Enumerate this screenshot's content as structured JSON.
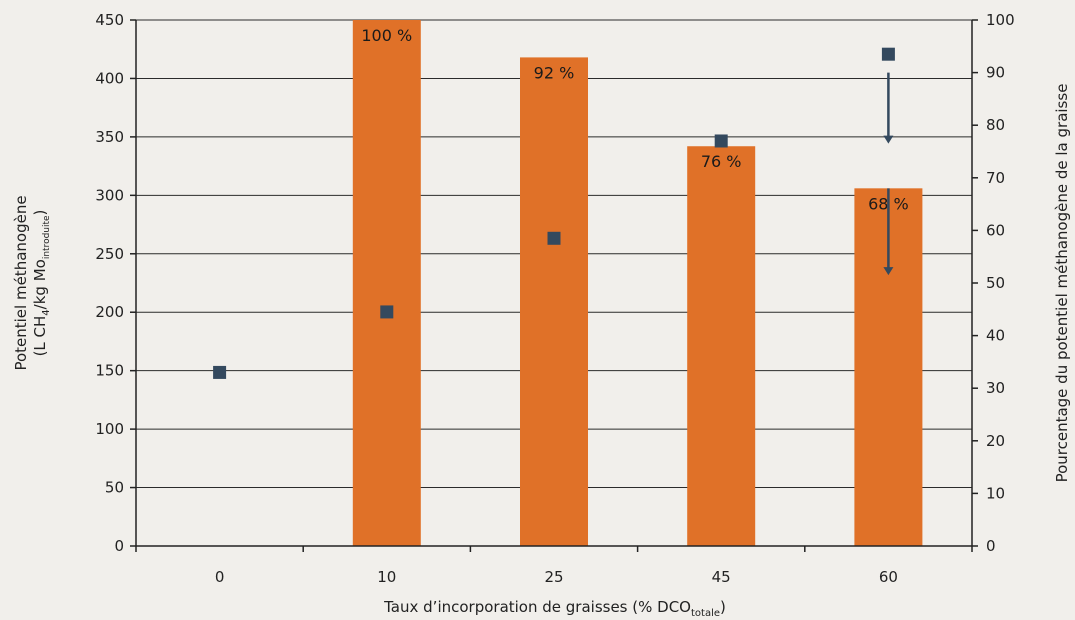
{
  "chart_data": {
    "type": "bar",
    "categories": [
      "0",
      "10",
      "25",
      "45",
      "60"
    ],
    "series": [
      {
        "type": "bar",
        "axis": "left",
        "values": [
          0,
          450,
          418,
          342,
          306
        ],
        "labels": [
          "",
          "100 %",
          "92 %",
          "76 %",
          "68 %"
        ],
        "color": "#e07128"
      },
      {
        "type": "scatter",
        "axis": "right",
        "values": [
          33,
          44.5,
          58.5,
          77,
          93.5
        ],
        "color": "#34495e"
      }
    ],
    "arrows": [
      {
        "category": "60",
        "from": 90,
        "to": 76.5
      },
      {
        "category": "60",
        "from": 68,
        "to": 51.5
      }
    ],
    "xlabel": "Taux d’incorporation de graisses (% DCO",
    "xlabel_sub": "totale",
    "xlabel_end": ")",
    "ylabel_line1": "Potentiel méthanogène",
    "ylabel_line2_a": "(L CH",
    "ylabel_line2_sub1": "4",
    "ylabel_line2_b": "/kg Mo",
    "ylabel_line2_sub2": "introduite",
    "ylabel_line2_c": ")",
    "y2label": "Pourcentage du potentiel méthanogène de la graisse",
    "ylim": [
      0,
      450
    ],
    "y2lim": [
      0,
      100
    ],
    "yticks": [
      0,
      50,
      100,
      150,
      200,
      250,
      300,
      350,
      400,
      450
    ],
    "y2ticks": [
      0,
      10,
      20,
      30,
      40,
      50,
      60,
      70,
      80,
      90,
      100
    ],
    "grid": true,
    "legend": "none"
  }
}
